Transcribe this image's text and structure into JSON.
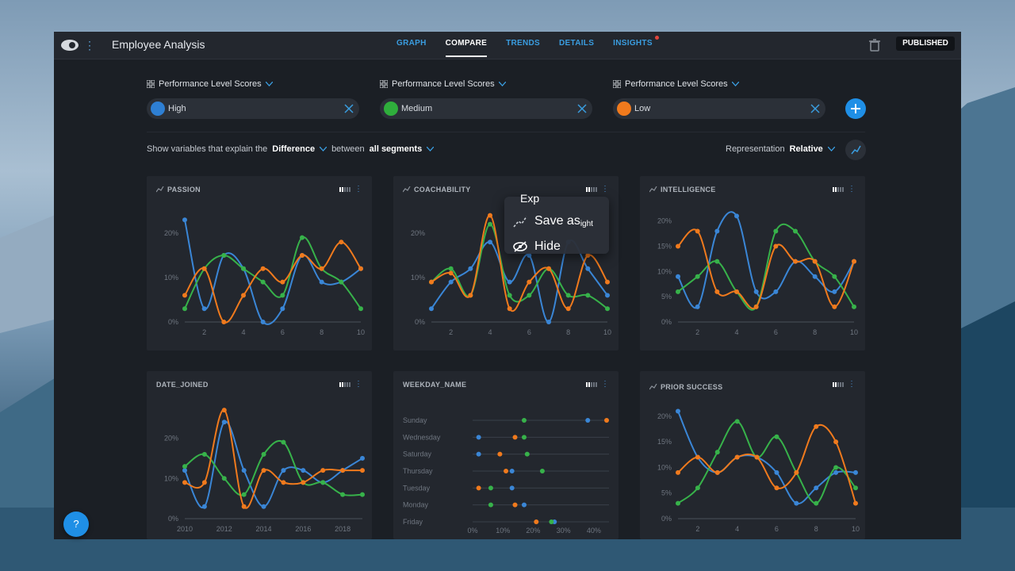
{
  "app": {
    "title": "Employee Analysis",
    "status": "PUBLISHED"
  },
  "nav": {
    "tabs": [
      {
        "label": "GRAPH"
      },
      {
        "label": "COMPARE",
        "active": true
      },
      {
        "label": "TRENDS"
      },
      {
        "label": "DETAILS"
      },
      {
        "label": "INSIGHTS",
        "notification": true
      }
    ]
  },
  "segments": [
    {
      "header": "Performance Level Scores",
      "value": "High",
      "color": "#2e7fd3"
    },
    {
      "header": "Performance Level Scores",
      "value": "Medium",
      "color": "#2fae3c"
    },
    {
      "header": "Performance Level Scores",
      "value": "Low",
      "color": "#f07a1d"
    }
  ],
  "filter": {
    "prefix": "Show variables that explain the",
    "mode": "Difference",
    "between_label": "between",
    "scope": "all segments"
  },
  "representation": {
    "label": "Representation",
    "value": "Relative"
  },
  "colors": {
    "High": "#3a86d6",
    "Medium": "#37b24a",
    "Low": "#f07a1d",
    "accent": "#1f8fe6"
  },
  "context_menu": {
    "partial_top": "Exp",
    "items": [
      {
        "label": "Save as",
        "suffix": "ight",
        "icon": "insight-icon"
      },
      {
        "label": "Hide",
        "icon": "eye-off-icon"
      }
    ]
  },
  "help": {
    "label": "?"
  },
  "chart_data": [
    {
      "type": "line",
      "title": "PASSION",
      "x": [
        1,
        2,
        3,
        4,
        5,
        6,
        7,
        8,
        9,
        10
      ],
      "xticks": [
        "2",
        "4",
        "6",
        "8",
        "10"
      ],
      "yticks": [
        "0%",
        "10%",
        "20%"
      ],
      "ylim": [
        0,
        25
      ],
      "series": [
        {
          "name": "High",
          "values": [
            23,
            3,
            15,
            12,
            0,
            3,
            15,
            9,
            9,
            12
          ]
        },
        {
          "name": "Medium",
          "values": [
            3,
            12,
            15,
            12,
            9,
            6,
            19,
            12,
            9,
            3
          ]
        },
        {
          "name": "Low",
          "values": [
            6,
            12,
            0,
            6,
            12,
            9,
            15,
            12,
            18,
            12
          ]
        }
      ]
    },
    {
      "type": "line",
      "title": "COACHABILITY",
      "x": [
        1,
        2,
        3,
        4,
        5,
        6,
        7,
        8,
        9,
        10
      ],
      "xticks": [
        "2",
        "4",
        "6",
        "8",
        "10"
      ],
      "yticks": [
        "0%",
        "10%",
        "20%"
      ],
      "ylim": [
        0,
        25
      ],
      "series": [
        {
          "name": "High",
          "values": [
            3,
            9,
            12,
            18,
            9,
            15,
            0,
            18,
            12,
            6
          ]
        },
        {
          "name": "Medium",
          "values": [
            9,
            12,
            6,
            22,
            6,
            6,
            12,
            6,
            6,
            3
          ]
        },
        {
          "name": "Low",
          "values": [
            9,
            11,
            6,
            24,
            3,
            9,
            12,
            3,
            15,
            9
          ]
        }
      ]
    },
    {
      "type": "line",
      "title": "INTELLIGENCE",
      "x": [
        1,
        2,
        3,
        4,
        5,
        6,
        7,
        8,
        9,
        10
      ],
      "xticks": [
        "2",
        "4",
        "6",
        "8",
        "10"
      ],
      "yticks": [
        "0%",
        "5%",
        "10%",
        "15%",
        "20%"
      ],
      "ylim": [
        0,
        22
      ],
      "series": [
        {
          "name": "High",
          "values": [
            9,
            3,
            18,
            21,
            6,
            6,
            12,
            9,
            6,
            12
          ]
        },
        {
          "name": "Medium",
          "values": [
            6,
            9,
            12,
            6,
            3,
            18,
            18,
            12,
            9,
            3
          ]
        },
        {
          "name": "Low",
          "values": [
            15,
            18,
            6,
            6,
            3,
            15,
            12,
            12,
            3,
            12
          ]
        }
      ]
    },
    {
      "type": "line",
      "title": "DATE_JOINED",
      "x": [
        2010,
        2011,
        2012,
        2013,
        2014,
        2015,
        2016,
        2017,
        2018,
        2019
      ],
      "xticks": [
        "2010",
        "2012",
        "2014",
        "2016",
        "2018"
      ],
      "yticks": [
        "0%",
        "10%",
        "20%"
      ],
      "ylim": [
        0,
        28
      ],
      "series": [
        {
          "name": "High",
          "values": [
            12,
            3,
            24,
            12,
            3,
            12,
            12,
            9,
            12,
            15
          ]
        },
        {
          "name": "Medium",
          "values": [
            13,
            16,
            10,
            6,
            16,
            19,
            9,
            9,
            6,
            6
          ]
        },
        {
          "name": "Low",
          "values": [
            9,
            9,
            27,
            3,
            12,
            9,
            9,
            12,
            12,
            12
          ]
        }
      ]
    },
    {
      "type": "scatter",
      "title": "WEEKDAY_NAME",
      "categories": [
        "Sunday",
        "Wednesday",
        "Saturday",
        "Thursday",
        "Tuesday",
        "Monday",
        "Friday"
      ],
      "xticks": [
        "0%",
        "10%",
        "20%",
        "30%",
        "40%"
      ],
      "xlim": [
        0,
        45
      ],
      "series": [
        {
          "name": "High",
          "values": [
            38,
            2,
            2,
            13,
            13,
            17,
            27
          ]
        },
        {
          "name": "Medium",
          "values": [
            17,
            17,
            18,
            23,
            6,
            6,
            26
          ]
        },
        {
          "name": "Low",
          "values": [
            47,
            14,
            9,
            11,
            2,
            14,
            21
          ]
        }
      ]
    },
    {
      "type": "line",
      "title": "PRIOR SUCCESS",
      "x": [
        1,
        2,
        3,
        4,
        5,
        6,
        7,
        8,
        9,
        10
      ],
      "xticks": [
        "2",
        "4",
        "6",
        "8",
        "10"
      ],
      "yticks": [
        "0%",
        "5%",
        "10%",
        "15%",
        "20%"
      ],
      "ylim": [
        0,
        22
      ],
      "series": [
        {
          "name": "High",
          "values": [
            21,
            12,
            9,
            12,
            12,
            9,
            3,
            6,
            9,
            9
          ]
        },
        {
          "name": "Medium",
          "values": [
            3,
            6,
            13,
            19,
            12,
            16,
            9,
            3,
            10,
            6
          ]
        },
        {
          "name": "Low",
          "values": [
            9,
            12,
            9,
            12,
            12,
            6,
            9,
            18,
            15,
            3
          ]
        }
      ]
    }
  ]
}
